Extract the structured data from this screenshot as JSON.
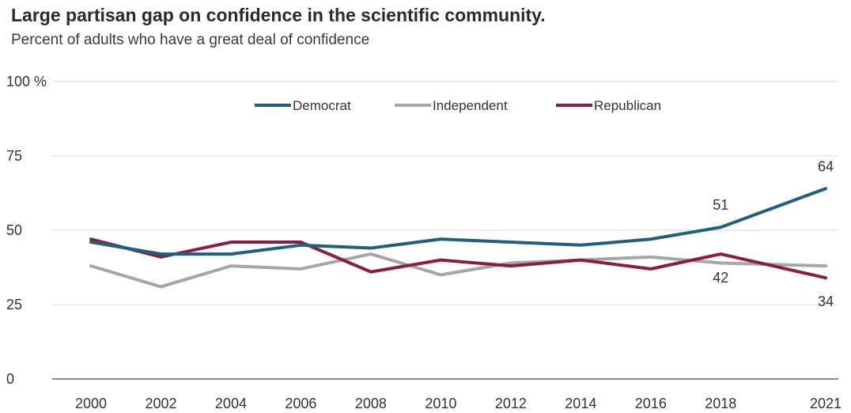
{
  "title": "Large partisan gap on confidence in the scientific community.",
  "subtitle": "Percent of adults who have a great deal of confidence",
  "chart_data": {
    "type": "line",
    "title": "Large partisan gap on confidence in the scientific community.",
    "subtitle": "Percent of adults who have a great deal of confidence",
    "x": [
      2000,
      2002,
      2004,
      2006,
      2008,
      2010,
      2012,
      2014,
      2016,
      2018,
      2021
    ],
    "x_tick_labels": [
      "2000",
      "2002",
      "2004",
      "2006",
      "2008",
      "2010",
      "2012",
      "2014",
      "2016",
      "2018",
      "2021"
    ],
    "y_tick_labels": [
      "0",
      "25",
      "50",
      "75",
      "100 %"
    ],
    "y_ticks": [
      0,
      25,
      50,
      75,
      100
    ],
    "ylim": [
      0,
      100
    ],
    "grid": "horizontal",
    "legend_position": "top",
    "series": [
      {
        "name": "Democrat",
        "color": "#1f5f7f",
        "values": [
          46,
          42,
          42,
          45,
          44,
          47,
          46,
          45,
          47,
          51,
          64
        ]
      },
      {
        "name": "Independent",
        "color": "#a6a6a6",
        "values": [
          38,
          31,
          38,
          37,
          42,
          35,
          39,
          40,
          41,
          39,
          38
        ]
      },
      {
        "name": "Republican",
        "color": "#8b1e3f",
        "values": [
          47,
          41,
          46,
          46,
          36,
          40,
          38,
          40,
          37,
          42,
          34
        ]
      }
    ],
    "annotations": [
      {
        "series": "Democrat",
        "x": 2018,
        "label": "51",
        "placement": "above"
      },
      {
        "series": "Democrat",
        "x": 2021,
        "label": "64",
        "placement": "above"
      },
      {
        "series": "Republican",
        "x": 2018,
        "label": "42",
        "placement": "below"
      },
      {
        "series": "Republican",
        "x": 2021,
        "label": "34",
        "placement": "below"
      }
    ]
  }
}
